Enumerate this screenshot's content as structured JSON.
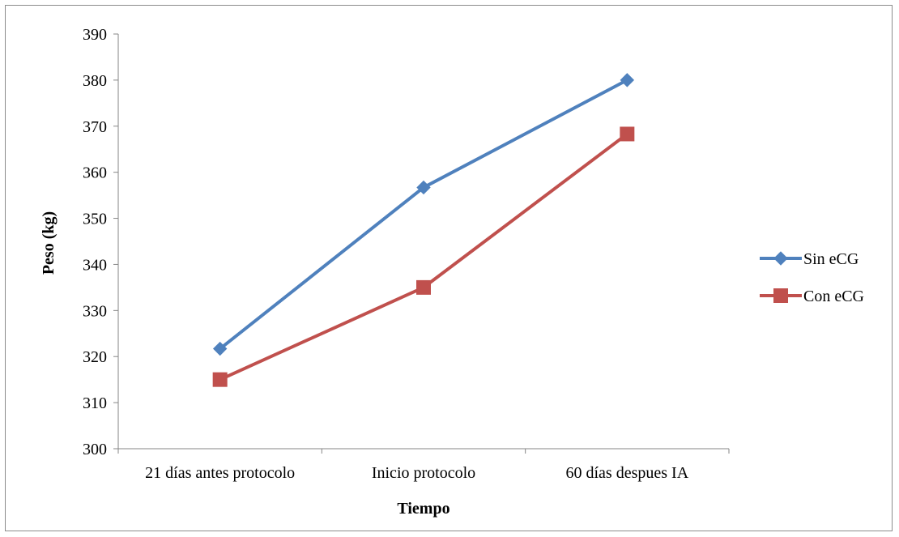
{
  "chart_data": {
    "type": "line",
    "categories": [
      "21 días antes protocolo",
      "Inicio protocolo",
      "60 días despues IA"
    ],
    "series": [
      {
        "name": "Sin eCG",
        "values": [
          321.7,
          356.7,
          380.0
        ],
        "color": "#4F81BD",
        "marker": "diamond"
      },
      {
        "name": "Con eCG",
        "values": [
          315.0,
          335.0,
          368.3
        ],
        "color": "#C0504D",
        "marker": "square"
      }
    ],
    "xlabel": "Tiempo",
    "ylabel": "Peso (kg)",
    "ylim": [
      300,
      390
    ],
    "yticks": [
      300,
      310,
      320,
      330,
      340,
      350,
      360,
      370,
      380,
      390
    ],
    "grid": false,
    "legend": "right"
  }
}
